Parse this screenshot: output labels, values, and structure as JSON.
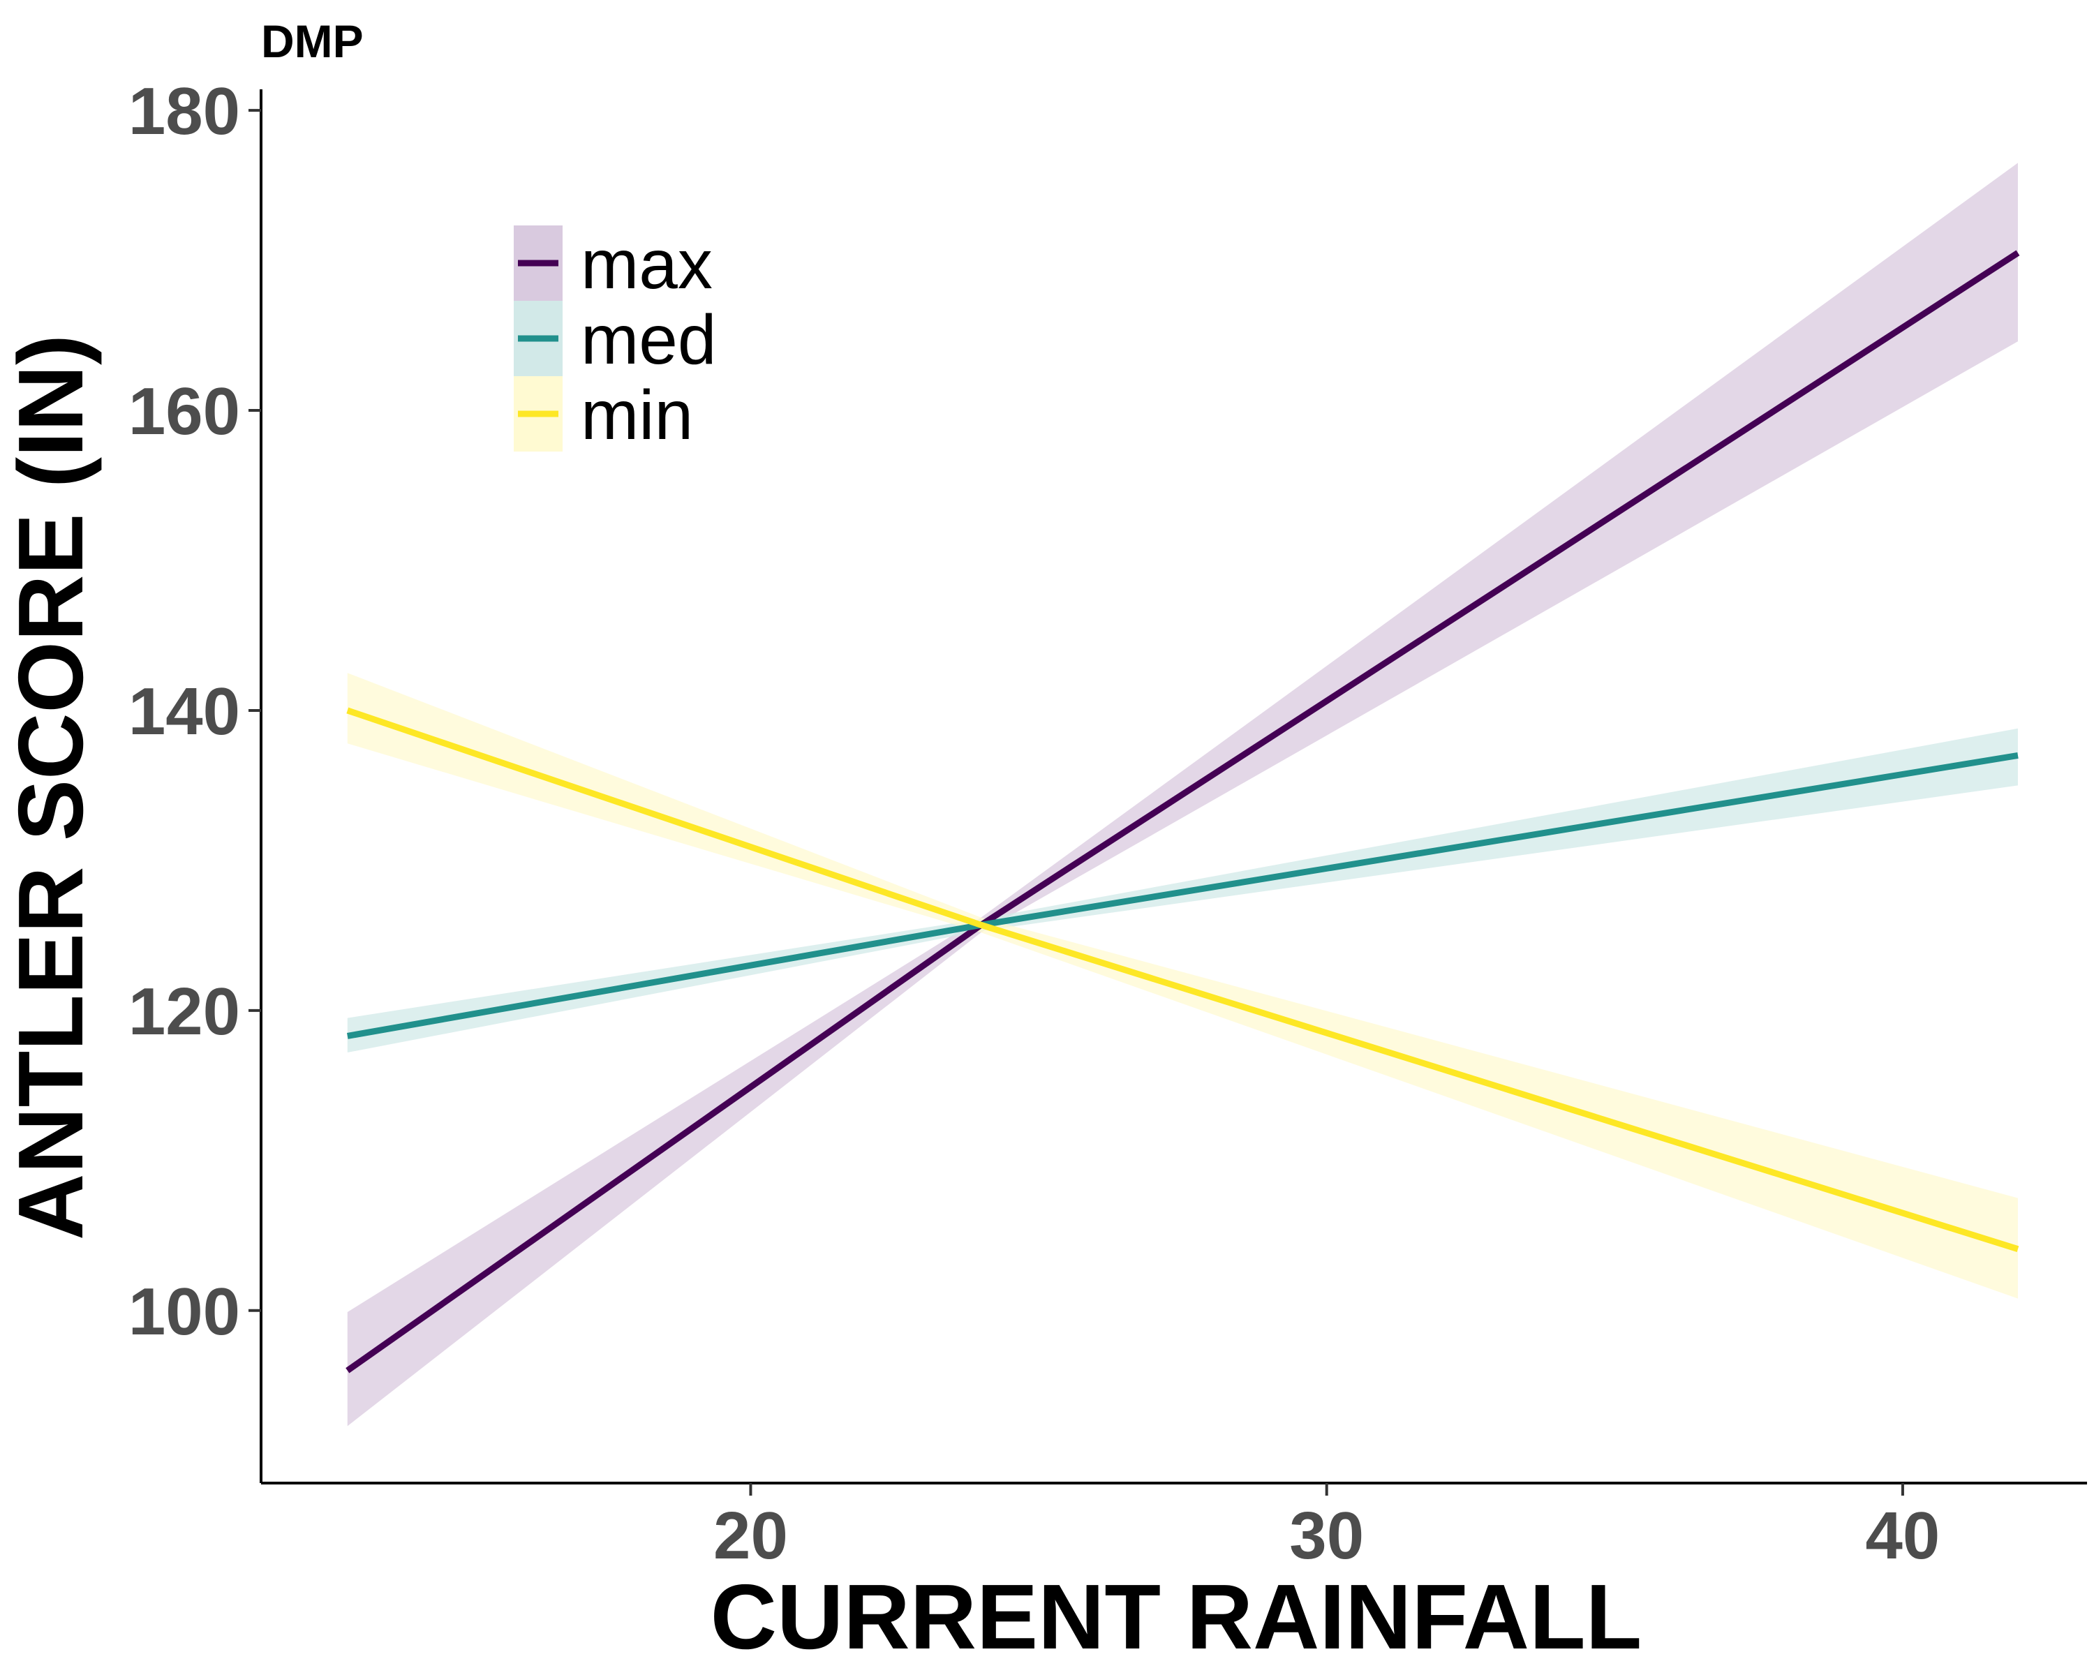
{
  "chart_data": {
    "type": "line",
    "tag": "DMP",
    "xlabel": "CURRENT RAINFALL",
    "ylabel": "ANTLER SCORE (IN)",
    "xlim": [
      11.5,
      43.2
    ],
    "ylim": [
      88.5,
      181.4
    ],
    "x_ticks": [
      20,
      30,
      40
    ],
    "y_ticks": [
      100,
      120,
      140,
      160,
      180
    ],
    "grid": false,
    "legend_position": "top-left",
    "series": [
      {
        "name": "max",
        "color": "#440154",
        "band_color": "#d9cadf",
        "x": [
          13,
          24,
          42
        ],
        "y": [
          96,
          125.7,
          170.5
        ],
        "lower": [
          92.3,
          125.2,
          164.6
        ],
        "upper": [
          99.9,
          126.2,
          176.5
        ]
      },
      {
        "name": "med",
        "color": "#21908c",
        "band_color": "#d2e9e8",
        "x": [
          13,
          24,
          42
        ],
        "y": [
          118.3,
          125.7,
          137
        ],
        "lower": [
          117.2,
          125.3,
          135
        ],
        "upper": [
          119.5,
          126.1,
          138.8
        ]
      },
      {
        "name": "min",
        "color": "#fde725",
        "band_color": "#fffad2",
        "x": [
          13,
          24,
          42
        ],
        "y": [
          140,
          125.7,
          104.1
        ],
        "lower": [
          137.8,
          125.2,
          100.8
        ],
        "upper": [
          142.5,
          126.2,
          107.5
        ]
      }
    ]
  }
}
